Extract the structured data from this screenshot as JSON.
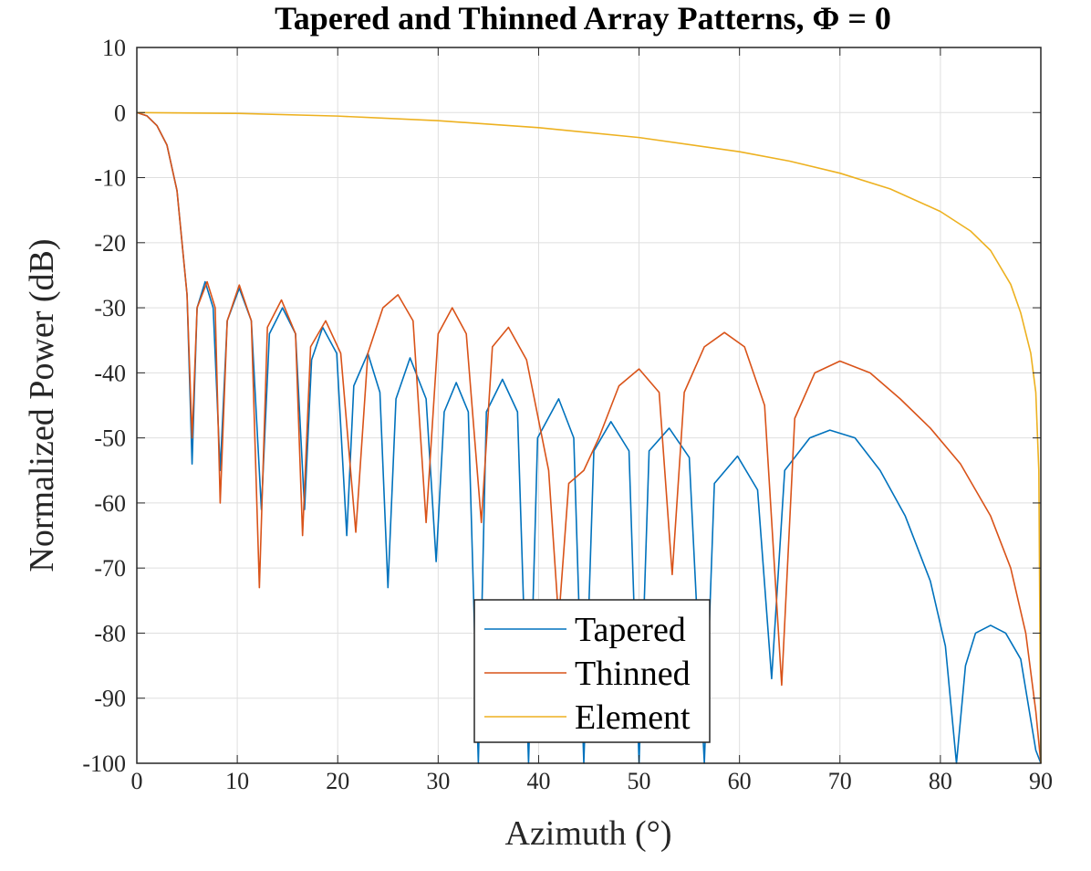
{
  "chart_data": {
    "type": "line",
    "title": "Tapered and Thinned Array Patterns, Φ = 0",
    "xlabel": "Azimuth (°)",
    "ylabel": "Normalized Power (dB)",
    "xlim": [
      0,
      90
    ],
    "ylim": [
      -100,
      10
    ],
    "xticks": [
      0,
      10,
      20,
      30,
      40,
      50,
      60,
      70,
      80,
      90
    ],
    "yticks": [
      10,
      0,
      -10,
      -20,
      -30,
      -40,
      -50,
      -60,
      -70,
      -80,
      -90,
      -100
    ],
    "grid": true,
    "legend_position": "bottom-center",
    "series": [
      {
        "name": "Tapered",
        "color": "#0072BD",
        "points": [
          [
            0,
            0
          ],
          [
            1,
            -0.5
          ],
          [
            2,
            -2
          ],
          [
            3,
            -5
          ],
          [
            4,
            -12
          ],
          [
            5,
            -28
          ],
          [
            5.5,
            -54
          ],
          [
            6,
            -30
          ],
          [
            6.8,
            -26
          ],
          [
            7.6,
            -30
          ],
          [
            8.3,
            -55
          ],
          [
            9,
            -32
          ],
          [
            10.2,
            -27
          ],
          [
            11.4,
            -32
          ],
          [
            12.4,
            -61
          ],
          [
            13.2,
            -34
          ],
          [
            14.5,
            -30
          ],
          [
            15.8,
            -34
          ],
          [
            16.7,
            -61
          ],
          [
            17.4,
            -38
          ],
          [
            18.5,
            -33
          ],
          [
            19.9,
            -37
          ],
          [
            20.9,
            -65
          ],
          [
            21.6,
            -42
          ],
          [
            23,
            -37
          ],
          [
            24.2,
            -43
          ],
          [
            25,
            -73
          ],
          [
            25.8,
            -44
          ],
          [
            27.2,
            -37.7
          ],
          [
            28.8,
            -44
          ],
          [
            29.8,
            -69
          ],
          [
            30.6,
            -46
          ],
          [
            31.8,
            -41.5
          ],
          [
            33,
            -46
          ],
          [
            34,
            -100
          ],
          [
            34.8,
            -46
          ],
          [
            36.4,
            -41
          ],
          [
            37.9,
            -46
          ],
          [
            39,
            -100
          ],
          [
            39.9,
            -50
          ],
          [
            42,
            -44
          ],
          [
            43.5,
            -50
          ],
          [
            44.5,
            -100
          ],
          [
            45.5,
            -52
          ],
          [
            47.2,
            -47.5
          ],
          [
            49,
            -52
          ],
          [
            50,
            -100
          ],
          [
            51,
            -52
          ],
          [
            53,
            -48.5
          ],
          [
            55,
            -53
          ],
          [
            56.5,
            -100
          ],
          [
            57.5,
            -57
          ],
          [
            59.8,
            -52.8
          ],
          [
            61.8,
            -58
          ],
          [
            63.2,
            -87
          ],
          [
            64.5,
            -55
          ],
          [
            67,
            -50
          ],
          [
            69,
            -48.8
          ],
          [
            71.5,
            -50
          ],
          [
            74,
            -55
          ],
          [
            76.5,
            -62
          ],
          [
            79,
            -72
          ],
          [
            80.5,
            -82
          ],
          [
            81.6,
            -100
          ],
          [
            82.5,
            -85
          ],
          [
            83.5,
            -80
          ],
          [
            85,
            -78.8
          ],
          [
            86.5,
            -80
          ],
          [
            88,
            -84
          ],
          [
            89.5,
            -98
          ],
          [
            90,
            -100
          ]
        ]
      },
      {
        "name": "Thinned",
        "color": "#D95319",
        "points": [
          [
            0,
            0
          ],
          [
            1,
            -0.5
          ],
          [
            2,
            -2
          ],
          [
            3,
            -5
          ],
          [
            4,
            -12
          ],
          [
            5,
            -28
          ],
          [
            5.5,
            -50
          ],
          [
            6,
            -30
          ],
          [
            7,
            -26
          ],
          [
            7.8,
            -30
          ],
          [
            8.3,
            -60
          ],
          [
            9,
            -32
          ],
          [
            10.2,
            -26.5
          ],
          [
            11.4,
            -32
          ],
          [
            12.2,
            -73
          ],
          [
            13,
            -33
          ],
          [
            14.4,
            -28.8
          ],
          [
            15.8,
            -34
          ],
          [
            16.5,
            -65
          ],
          [
            17.3,
            -36
          ],
          [
            18.8,
            -32
          ],
          [
            20.3,
            -37
          ],
          [
            21.8,
            -64.5
          ],
          [
            23,
            -37
          ],
          [
            24.5,
            -30
          ],
          [
            26,
            -28
          ],
          [
            27.5,
            -32
          ],
          [
            28.8,
            -63
          ],
          [
            30,
            -34
          ],
          [
            31.4,
            -30
          ],
          [
            32.8,
            -34
          ],
          [
            34.3,
            -63
          ],
          [
            35.4,
            -36
          ],
          [
            37,
            -33
          ],
          [
            38.8,
            -38
          ],
          [
            41,
            -55
          ],
          [
            42,
            -78
          ],
          [
            43,
            -57
          ],
          [
            44.5,
            -55
          ],
          [
            46,
            -50
          ],
          [
            48,
            -42
          ],
          [
            50,
            -39.4
          ],
          [
            52,
            -43
          ],
          [
            53.3,
            -71
          ],
          [
            54.5,
            -43
          ],
          [
            56.5,
            -36
          ],
          [
            58.5,
            -33.8
          ],
          [
            60.5,
            -36
          ],
          [
            62.5,
            -45
          ],
          [
            64.2,
            -88
          ],
          [
            65.5,
            -47
          ],
          [
            67.5,
            -40
          ],
          [
            70,
            -38.2
          ],
          [
            73,
            -40
          ],
          [
            76,
            -44
          ],
          [
            79,
            -48.5
          ],
          [
            82,
            -54
          ],
          [
            85,
            -62
          ],
          [
            87,
            -70
          ],
          [
            88.5,
            -80
          ],
          [
            89.5,
            -92
          ],
          [
            90,
            -100
          ]
        ]
      },
      {
        "name": "Element",
        "color": "#EDB120",
        "points": [
          [
            0,
            0
          ],
          [
            10,
            -0.13
          ],
          [
            20,
            -0.54
          ],
          [
            30,
            -1.25
          ],
          [
            40,
            -2.32
          ],
          [
            50,
            -3.84
          ],
          [
            60,
            -6.02
          ],
          [
            65,
            -7.47
          ],
          [
            70,
            -9.32
          ],
          [
            75,
            -11.73
          ],
          [
            80,
            -15.2
          ],
          [
            83,
            -18.2
          ],
          [
            85,
            -21.2
          ],
          [
            87,
            -26.4
          ],
          [
            88,
            -30.8
          ],
          [
            89,
            -37
          ],
          [
            89.5,
            -43
          ],
          [
            89.8,
            -55
          ],
          [
            90,
            -100
          ]
        ]
      }
    ]
  }
}
